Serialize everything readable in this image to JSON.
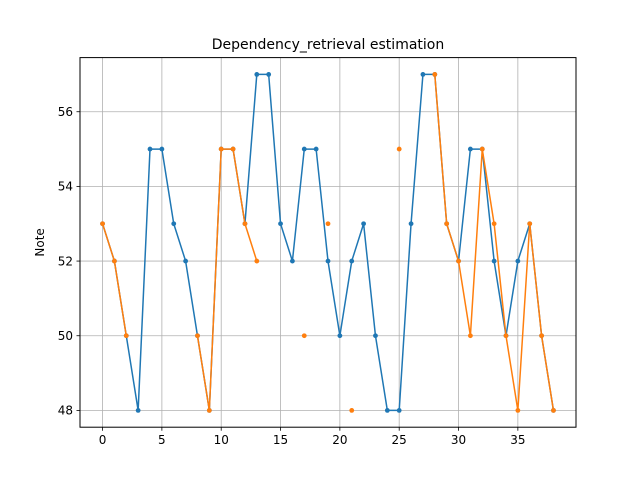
{
  "chart_data": {
    "type": "line",
    "title": "Dependency_retrieval estimation",
    "xlabel": "",
    "ylabel": "Note",
    "xlim": [
      -1.9,
      39.9
    ],
    "ylim": [
      47.55,
      57.45
    ],
    "xticks": [
      0,
      5,
      10,
      15,
      20,
      25,
      30,
      35
    ],
    "yticks": [
      48,
      50,
      52,
      54,
      56
    ],
    "grid": true,
    "series": [
      {
        "color": "#1f77b4",
        "x": [
          0,
          1,
          2,
          3,
          4,
          5,
          6,
          7,
          8,
          9,
          10,
          11,
          12,
          13,
          14,
          15,
          16,
          17,
          18,
          19,
          20,
          21,
          22,
          23,
          24,
          25,
          26,
          27,
          28,
          29,
          30,
          31,
          32,
          33,
          34,
          35,
          36,
          37,
          38
        ],
        "values": [
          53,
          52,
          50,
          48,
          55,
          55,
          53,
          52,
          50,
          48,
          55,
          55,
          53,
          57,
          57,
          53,
          52,
          55,
          55,
          52,
          50,
          52,
          53,
          50,
          48,
          48,
          53,
          57,
          57,
          53,
          52,
          55,
          55,
          52,
          50,
          52,
          53,
          50,
          48
        ]
      },
      {
        "color": "#ff7f0e",
        "x": [
          0,
          1,
          2,
          3,
          4,
          5,
          6,
          7,
          8,
          9,
          10,
          11,
          12,
          13,
          14,
          15,
          16,
          17,
          18,
          19,
          20,
          21,
          22,
          23,
          24,
          25,
          26,
          27,
          28,
          29,
          30,
          31,
          32,
          33,
          34,
          35,
          36,
          37,
          38
        ],
        "values": [
          53,
          52,
          50,
          null,
          null,
          null,
          null,
          null,
          50,
          48,
          55,
          55,
          53,
          52,
          null,
          null,
          null,
          50,
          null,
          53,
          null,
          48,
          null,
          null,
          null,
          55,
          null,
          null,
          57,
          53,
          52,
          50,
          55,
          53,
          50,
          48,
          53,
          50,
          48
        ]
      }
    ]
  }
}
